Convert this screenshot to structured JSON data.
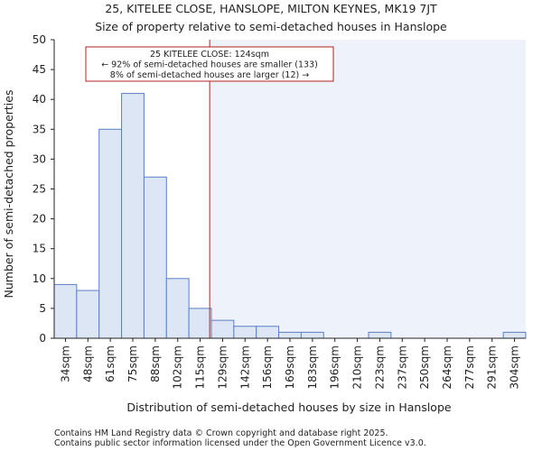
{
  "chart_data": {
    "type": "bar",
    "title": "25, KITELEE CLOSE, HANSLOPE, MILTON KEYNES, MK19 7JT",
    "subtitle": "Size of property relative to semi-detached houses in Hanslope",
    "xlabel": "Distribution of semi-detached houses by size in Hanslope",
    "ylabel": "Number of semi-detached properties",
    "categories": [
      "34sqm",
      "48sqm",
      "61sqm",
      "75sqm",
      "88sqm",
      "102sqm",
      "115sqm",
      "129sqm",
      "142sqm",
      "156sqm",
      "169sqm",
      "183sqm",
      "196sqm",
      "210sqm",
      "223sqm",
      "237sqm",
      "250sqm",
      "264sqm",
      "277sqm",
      "291sqm",
      "304sqm"
    ],
    "values": [
      9,
      8,
      35,
      41,
      27,
      10,
      5,
      3,
      2,
      2,
      1,
      1,
      0,
      0,
      1,
      0,
      0,
      0,
      0,
      0,
      1
    ],
    "ylim": [
      0,
      50
    ],
    "yticks": [
      0,
      5,
      10,
      15,
      20,
      25,
      30,
      35,
      40,
      45,
      50
    ],
    "grid": false,
    "property_marker": {
      "value_sqm": 124,
      "line_1": "25 KITELEE CLOSE: 124sqm",
      "line_2": "← 92% of semi-detached houses are smaller (133)",
      "line_3": "8% of semi-detached houses are larger (12) →"
    },
    "footer_1": "Contains HM Land Registry data © Crown copyright and database right 2025.",
    "footer_2": "Contains public sector information licensed under the Open Government Licence v3.0.",
    "colors": {
      "bar_fill": "#dce6f5",
      "bar_edge": "#5b7fc4",
      "highlight_bg": "#eef2fb",
      "marker": "#b22222",
      "axis": "#222222"
    }
  }
}
